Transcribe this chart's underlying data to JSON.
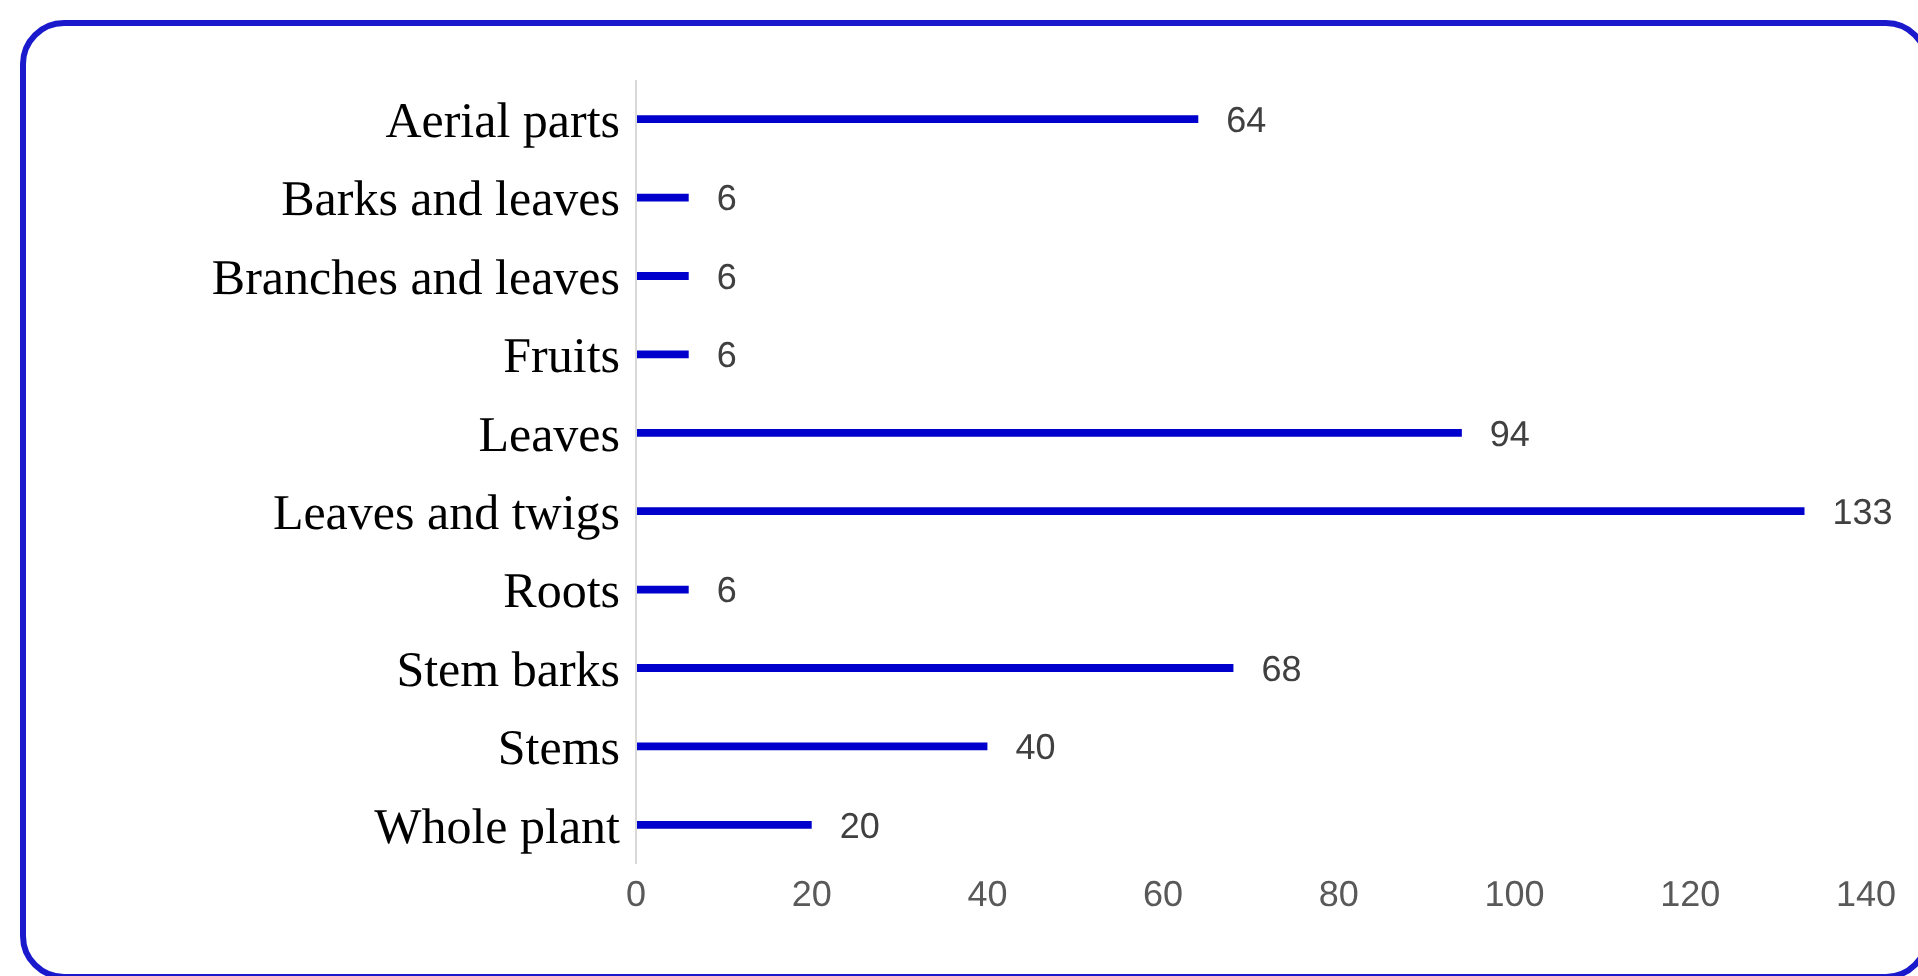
{
  "chart_data": {
    "type": "bar",
    "orientation": "horizontal",
    "categories": [
      "Aerial parts",
      "Barks and leaves",
      "Branches and leaves",
      "Fruits",
      "Leaves",
      "Leaves and twigs",
      "Roots",
      "Stem barks",
      "Stems",
      "Whole plant"
    ],
    "values": [
      64,
      6,
      6,
      6,
      94,
      133,
      6,
      68,
      40,
      20
    ],
    "color": "#0000cc",
    "xlim": [
      0,
      140
    ],
    "xticks": [
      0,
      20,
      40,
      60,
      80,
      100,
      120,
      140
    ],
    "data_labels": true,
    "grid": false,
    "legend": false
  }
}
